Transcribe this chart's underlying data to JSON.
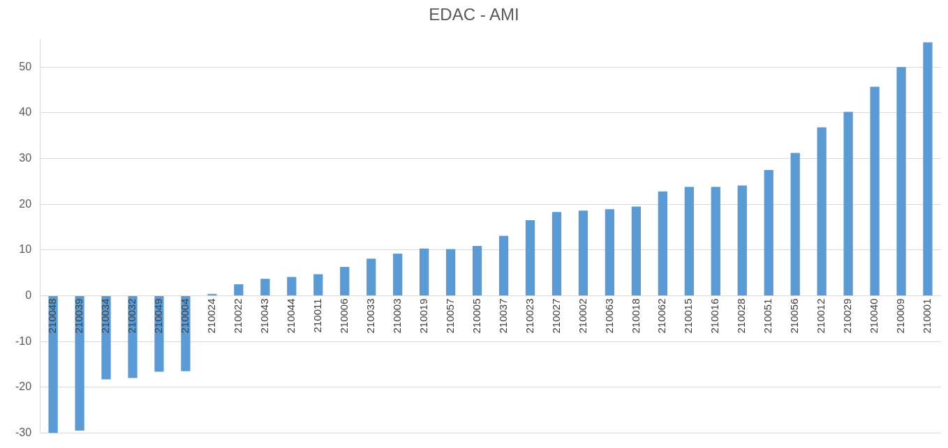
{
  "chart_data": {
    "type": "bar",
    "title": "EDAC - AMI",
    "categories": [
      "210048",
      "210039",
      "210034",
      "210032",
      "210049",
      "210004",
      "210024",
      "210022",
      "210043",
      "210044",
      "210011",
      "210006",
      "210033",
      "210003",
      "210019",
      "210057",
      "210005",
      "210037",
      "210023",
      "210027",
      "210002",
      "210063",
      "210018",
      "210062",
      "210015",
      "210016",
      "210028",
      "210051",
      "210056",
      "210012",
      "210029",
      "210040",
      "210009",
      "210001"
    ],
    "values": [
      -30,
      -29.5,
      -18.3,
      -18,
      -16.6,
      -16.5,
      0.4,
      2.5,
      3.7,
      4.1,
      4.7,
      6.3,
      8.1,
      9.2,
      10.3,
      10.2,
      10.9,
      13.1,
      16.5,
      18.3,
      18.6,
      18.9,
      19.5,
      22.8,
      23.8,
      23.8,
      24.1,
      27.5,
      31.2,
      36.8,
      40.2,
      45.7,
      50,
      55.4
    ],
    "color": "#5b9bd5",
    "ylim": [
      -30,
      56
    ],
    "yticks": [
      -30,
      -20,
      -10,
      0,
      10,
      20,
      30,
      40,
      50
    ],
    "grid": "y"
  }
}
